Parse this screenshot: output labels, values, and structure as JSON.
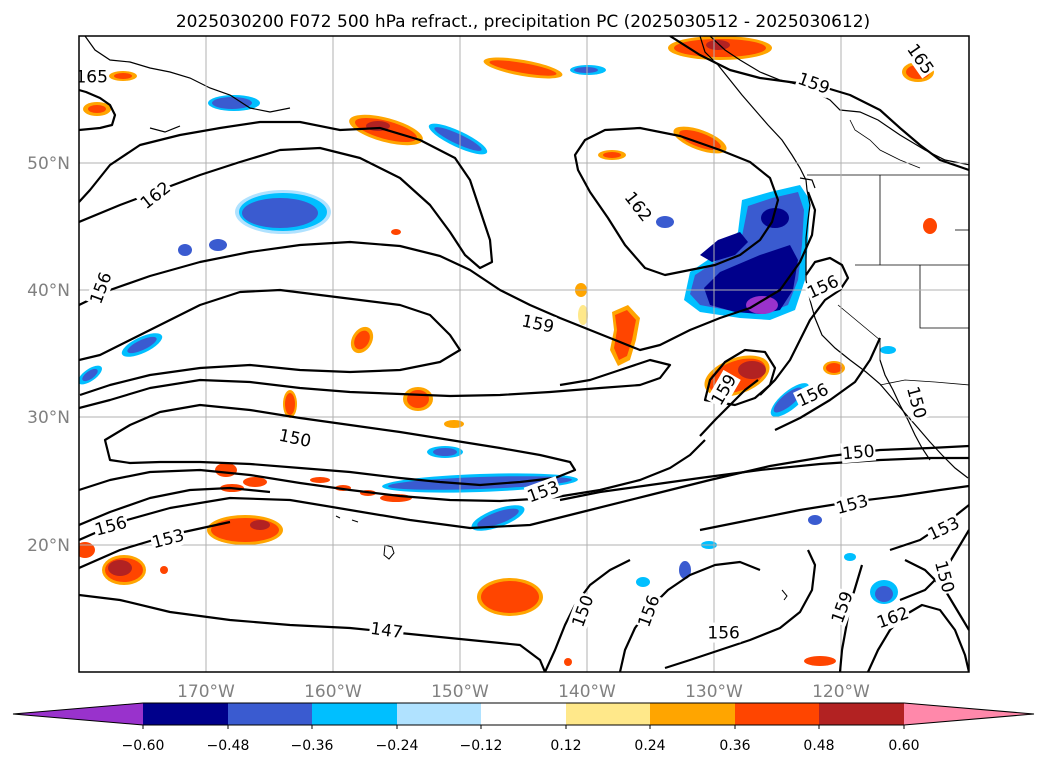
{
  "title": "2025030200 F072 500 hPa refract., precipitation PC (2025030512 - 2025030612)",
  "map": {
    "lat_labels": [
      "50°N",
      "40°N",
      "30°N",
      "20°N"
    ],
    "lon_labels": [
      "170°W",
      "160°W",
      "150°W",
      "140°W",
      "130°W",
      "120°W"
    ],
    "lat_range": [
      10,
      60
    ],
    "lon_range": [
      -180,
      -110
    ],
    "grid": true
  },
  "contours": {
    "labels": [
      {
        "text": "165",
        "lon": -179,
        "lat": 56.8,
        "angle": 0
      },
      {
        "text": "159",
        "lon": -122.2,
        "lat": 56.3,
        "angle": 20
      },
      {
        "text": "165",
        "lon": -113.8,
        "lat": 58.2,
        "angle": 55
      },
      {
        "text": "162",
        "lon": -174,
        "lat": 47.5,
        "angle": -38
      },
      {
        "text": "162",
        "lon": -136,
        "lat": 46.6,
        "angle": 52
      },
      {
        "text": "156",
        "lon": -178.3,
        "lat": 40.2,
        "angle": -70
      },
      {
        "text": "159",
        "lon": -143.9,
        "lat": 37.4,
        "angle": 12
      },
      {
        "text": "156",
        "lon": -121.5,
        "lat": 40.3,
        "angle": -25
      },
      {
        "text": "159",
        "lon": -129.3,
        "lat": 32.2,
        "angle": -60
      },
      {
        "text": "156",
        "lon": -122.3,
        "lat": 31.8,
        "angle": -25
      },
      {
        "text": "150",
        "lon": -114.1,
        "lat": 31.2,
        "angle": 75
      },
      {
        "text": "150",
        "lon": -163,
        "lat": 28.4,
        "angle": 12
      },
      {
        "text": "150",
        "lon": -118.7,
        "lat": 27.3,
        "angle": -5
      },
      {
        "text": "153",
        "lon": -143.5,
        "lat": 24.2,
        "angle": -20
      },
      {
        "text": "153",
        "lon": -119.2,
        "lat": 23.2,
        "angle": -15
      },
      {
        "text": "156",
        "lon": -177.5,
        "lat": 21.5,
        "angle": -15
      },
      {
        "text": "153",
        "lon": -173,
        "lat": 20.5,
        "angle": -15
      },
      {
        "text": "153",
        "lon": -112,
        "lat": 21.3,
        "angle": -25
      },
      {
        "text": "150",
        "lon": -111.9,
        "lat": 17.5,
        "angle": 75
      },
      {
        "text": "159",
        "lon": -120,
        "lat": 15.1,
        "angle": -70
      },
      {
        "text": "162",
        "lon": -116,
        "lat": 14.3,
        "angle": -20
      },
      {
        "text": "156",
        "lon": -135.2,
        "lat": 14.8,
        "angle": -70
      },
      {
        "text": "150",
        "lon": -140.4,
        "lat": 14.8,
        "angle": -70
      },
      {
        "text": "156",
        "lon": -129.3,
        "lat": 13.1,
        "angle": 0
      },
      {
        "text": "147",
        "lon": -155.8,
        "lat": 13.3,
        "angle": 8
      }
    ]
  },
  "colorbar": {
    "tick_labels": [
      "−0.60",
      "−0.48",
      "−0.36",
      "−0.24",
      "−0.12",
      "0.12",
      "0.24",
      "0.36",
      "0.48",
      "0.60"
    ],
    "colors": [
      "#9932cc",
      "#00008b",
      "#3a5bd0",
      "#00bfff",
      "#b0e2ff",
      "#ffffff",
      "#ffe88a",
      "#ffa500",
      "#ff4500",
      "#b22222",
      "#ff88aa"
    ]
  }
}
